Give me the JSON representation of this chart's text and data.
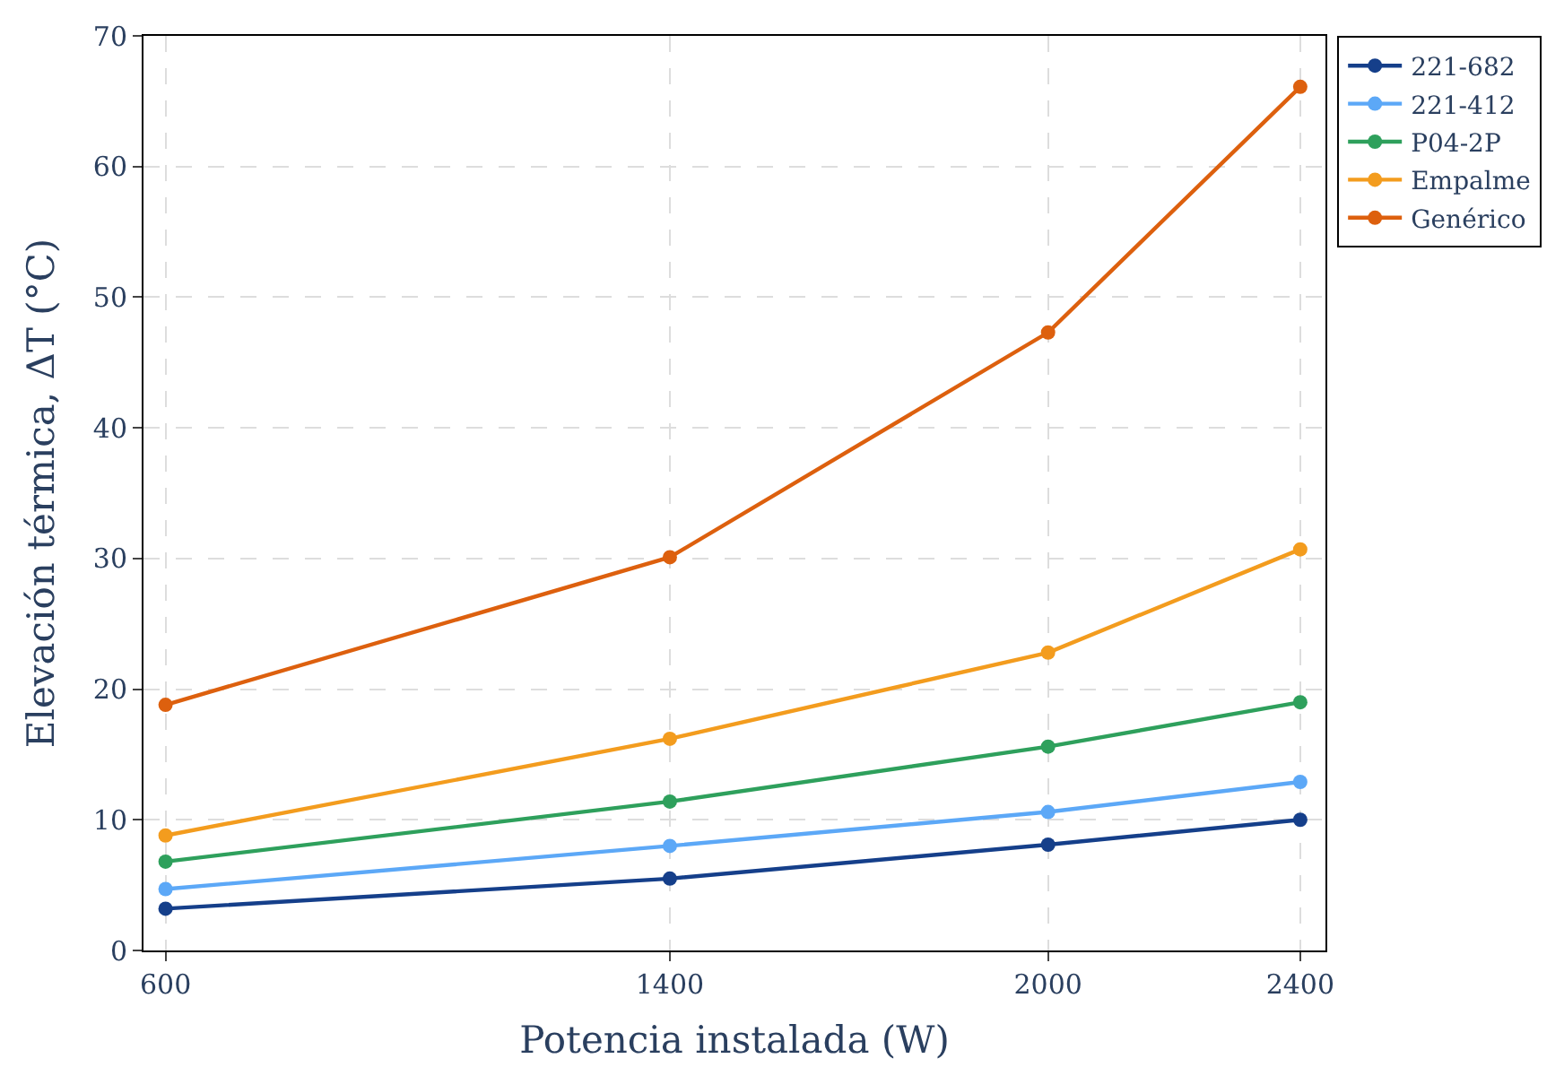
{
  "chart_data": {
    "type": "line",
    "xlabel": "Potencia instalada (W)",
    "ylabel": "Elevación térmica, ΔT (°C)",
    "x": [
      600,
      1400,
      2000,
      2400
    ],
    "series": [
      {
        "name": "221-682",
        "color": "#153f8a",
        "values": [
          3.2,
          5.5,
          8.1,
          10.0
        ]
      },
      {
        "name": "221-412",
        "color": "#5ca8f7",
        "values": [
          4.7,
          8.0,
          10.6,
          12.9
        ]
      },
      {
        "name": "P04-2P",
        "color": "#2ea05c",
        "values": [
          6.8,
          11.4,
          15.6,
          19.0
        ]
      },
      {
        "name": "Empalme",
        "color": "#f39c1e",
        "values": [
          8.8,
          16.2,
          22.8,
          30.7
        ]
      },
      {
        "name": "Genérico",
        "color": "#dd600e",
        "values": [
          18.8,
          30.1,
          47.3,
          66.1
        ]
      }
    ],
    "xlim": [
      565,
      2440
    ],
    "xticks": [
      600,
      1400,
      2000,
      2400
    ],
    "ylim": [
      0,
      70
    ],
    "yticks": [
      0,
      10,
      20,
      30,
      40,
      50,
      60,
      70
    ],
    "grid": true,
    "legend": "top right",
    "marker": "circle",
    "line_style": "solid"
  }
}
